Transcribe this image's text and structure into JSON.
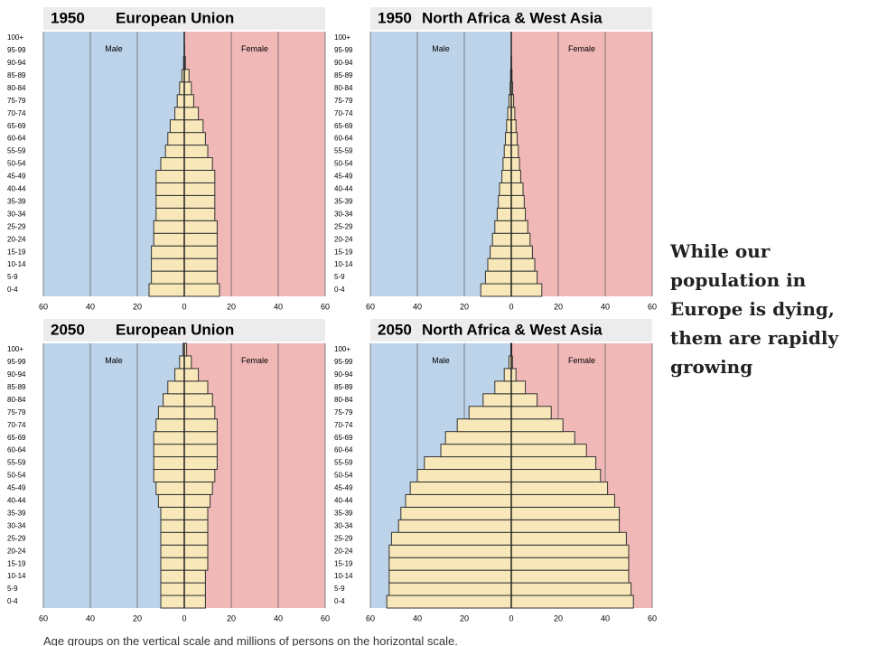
{
  "annotation": [
    "While our",
    "population in",
    "Europe is dying,",
    "them are rapidly",
    "growing"
  ],
  "caption": "Age groups on the vertical scale and millions of persons on the horizontal scale.",
  "chart_data": [
    {
      "type": "pyramid",
      "year": "1950",
      "title": "European Union",
      "categories": [
        "0-4",
        "5-9",
        "10-14",
        "15-19",
        "20-24",
        "25-29",
        "30-34",
        "35-39",
        "40-44",
        "45-49",
        "50-54",
        "55-59",
        "60-64",
        "65-69",
        "70-74",
        "75-79",
        "80-84",
        "85-89",
        "90-94",
        "95-99",
        "100+"
      ],
      "series": [
        {
          "name": "Male",
          "color": "#f7e7b9",
          "region_color": "#bcd3ea",
          "values": [
            15,
            14,
            14,
            14,
            13,
            13,
            12,
            12,
            12,
            12,
            10,
            8,
            7,
            6,
            4,
            3,
            2,
            1,
            0.3,
            0,
            0
          ]
        },
        {
          "name": "Female",
          "color": "#f7e7b9",
          "region_color": "#f1b8b8",
          "values": [
            15,
            14,
            14,
            14,
            14,
            14,
            13,
            13,
            13,
            13,
            12,
            10,
            9,
            8,
            6,
            4,
            3,
            2,
            0.5,
            0.1,
            0
          ]
        }
      ],
      "xlim": [
        -60,
        60
      ],
      "xticks": [
        {
          "value": -60,
          "label": "60"
        },
        {
          "value": -40,
          "label": "40"
        },
        {
          "value": -20,
          "label": "20"
        },
        0,
        20,
        40,
        60
      ]
    },
    {
      "type": "pyramid",
      "year": "1950",
      "title": "North Africa & West Asia",
      "categories": [
        "0-4",
        "5-9",
        "10-14",
        "15-19",
        "20-24",
        "25-29",
        "30-34",
        "35-39",
        "40-44",
        "45-49",
        "50-54",
        "55-59",
        "60-64",
        "65-69",
        "70-74",
        "75-79",
        "80-84",
        "85-89",
        "90-94",
        "95-99",
        "100+"
      ],
      "series": [
        {
          "name": "Male",
          "color": "#f7e7b9",
          "region_color": "#bcd3ea",
          "values": [
            13,
            11,
            10,
            9,
            8,
            7,
            6,
            5.5,
            5,
            4,
            3.5,
            3,
            2.5,
            2,
            1.5,
            1,
            0.5,
            0.3,
            0.1,
            0,
            0
          ]
        },
        {
          "name": "Female",
          "color": "#f7e7b9",
          "region_color": "#f1b8b8",
          "values": [
            13,
            11,
            10,
            9,
            8,
            7,
            6,
            5.5,
            5,
            4,
            3.5,
            3,
            2.5,
            2,
            1.5,
            1,
            0.6,
            0.3,
            0.1,
            0,
            0
          ]
        }
      ],
      "xlim": [
        -60,
        60
      ],
      "xticks": [
        {
          "value": -60,
          "label": "60"
        },
        {
          "value": -40,
          "label": "40"
        },
        {
          "value": -20,
          "label": "20"
        },
        0,
        20,
        40,
        60
      ]
    },
    {
      "type": "pyramid",
      "year": "2050",
      "title": "European Union",
      "categories": [
        "0-4",
        "5-9",
        "10-14",
        "15-19",
        "20-24",
        "25-29",
        "30-34",
        "35-39",
        "40-44",
        "45-49",
        "50-54",
        "55-59",
        "60-64",
        "65-69",
        "70-74",
        "75-79",
        "80-84",
        "85-89",
        "90-94",
        "95-99",
        "100+"
      ],
      "series": [
        {
          "name": "Male",
          "color": "#f7e7b9",
          "region_color": "#bcd3ea",
          "values": [
            10,
            10,
            10,
            10,
            10,
            10,
            10,
            10,
            11,
            12,
            13,
            13,
            13,
            13,
            12,
            11,
            9,
            7,
            4,
            2,
            0.5
          ]
        },
        {
          "name": "Female",
          "color": "#f7e7b9",
          "region_color": "#f1b8b8",
          "values": [
            9,
            9,
            9,
            10,
            10,
            10,
            10,
            10,
            11,
            12,
            13,
            14,
            14,
            14,
            14,
            13,
            12,
            10,
            6,
            3,
            1
          ]
        }
      ],
      "xlim": [
        -60,
        60
      ],
      "xticks": [
        {
          "value": -60,
          "label": "60"
        },
        {
          "value": -40,
          "label": "40"
        },
        {
          "value": -20,
          "label": "20"
        },
        0,
        20,
        40,
        60
      ]
    },
    {
      "type": "pyramid",
      "year": "2050",
      "title": "North Africa & West Asia",
      "categories": [
        "0-4",
        "5-9",
        "10-14",
        "15-19",
        "20-24",
        "25-29",
        "30-34",
        "35-39",
        "40-44",
        "45-49",
        "50-54",
        "55-59",
        "60-64",
        "65-69",
        "70-74",
        "75-79",
        "80-84",
        "85-89",
        "90-94",
        "95-99",
        "100+"
      ],
      "series": [
        {
          "name": "Male",
          "color": "#f7e7b9",
          "region_color": "#bcd3ea",
          "values": [
            53,
            52,
            52,
            52,
            52,
            51,
            48,
            47,
            45,
            43,
            40,
            37,
            30,
            28,
            23,
            18,
            12,
            7,
            3,
            1,
            0.2
          ]
        },
        {
          "name": "Female",
          "color": "#f7e7b9",
          "region_color": "#f1b8b8",
          "values": [
            52,
            51,
            50,
            50,
            50,
            49,
            46,
            46,
            44,
            41,
            38,
            36,
            32,
            27,
            22,
            17,
            11,
            6,
            2,
            0.5,
            0.2
          ]
        }
      ],
      "xlim": [
        -60,
        60
      ],
      "xticks": [
        {
          "value": -60,
          "label": "60"
        },
        {
          "value": -40,
          "label": "40"
        },
        {
          "value": -20,
          "label": "20"
        },
        0,
        20,
        40,
        60
      ]
    }
  ]
}
